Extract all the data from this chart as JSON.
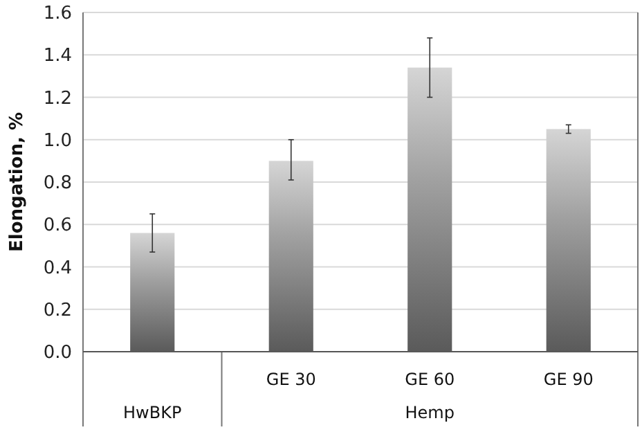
{
  "chart_data": {
    "type": "bar",
    "ylabel": "Elongation, %",
    "categories": [
      null,
      "GE 30",
      "GE 60",
      "GE 90"
    ],
    "values": [
      0.56,
      0.9,
      1.34,
      1.05
    ],
    "errors": [
      [
        0.47,
        0.65
      ],
      [
        0.81,
        1.0
      ],
      [
        1.2,
        1.48
      ],
      [
        1.03,
        1.07
      ]
    ],
    "color": "#a0a0a0",
    "ylim": [
      0,
      1.6
    ],
    "yticks": [
      {
        "value": 0,
        "label": "0.0"
      },
      {
        "value": 0.2,
        "label": "0.2"
      },
      {
        "value": 0.4,
        "label": "0.4"
      },
      {
        "value": 0.6,
        "label": "0.6"
      },
      {
        "value": 0.8,
        "label": "0.8"
      },
      {
        "value": 1,
        "label": "1.0"
      },
      {
        "value": 1.2,
        "label": "1.2"
      },
      {
        "value": 1.4,
        "label": "1.4"
      },
      {
        "value": 1.6,
        "label": "1.6"
      }
    ],
    "grid": "y",
    "annotations": [
      "HwBKP",
      "Hemp"
    ]
  }
}
